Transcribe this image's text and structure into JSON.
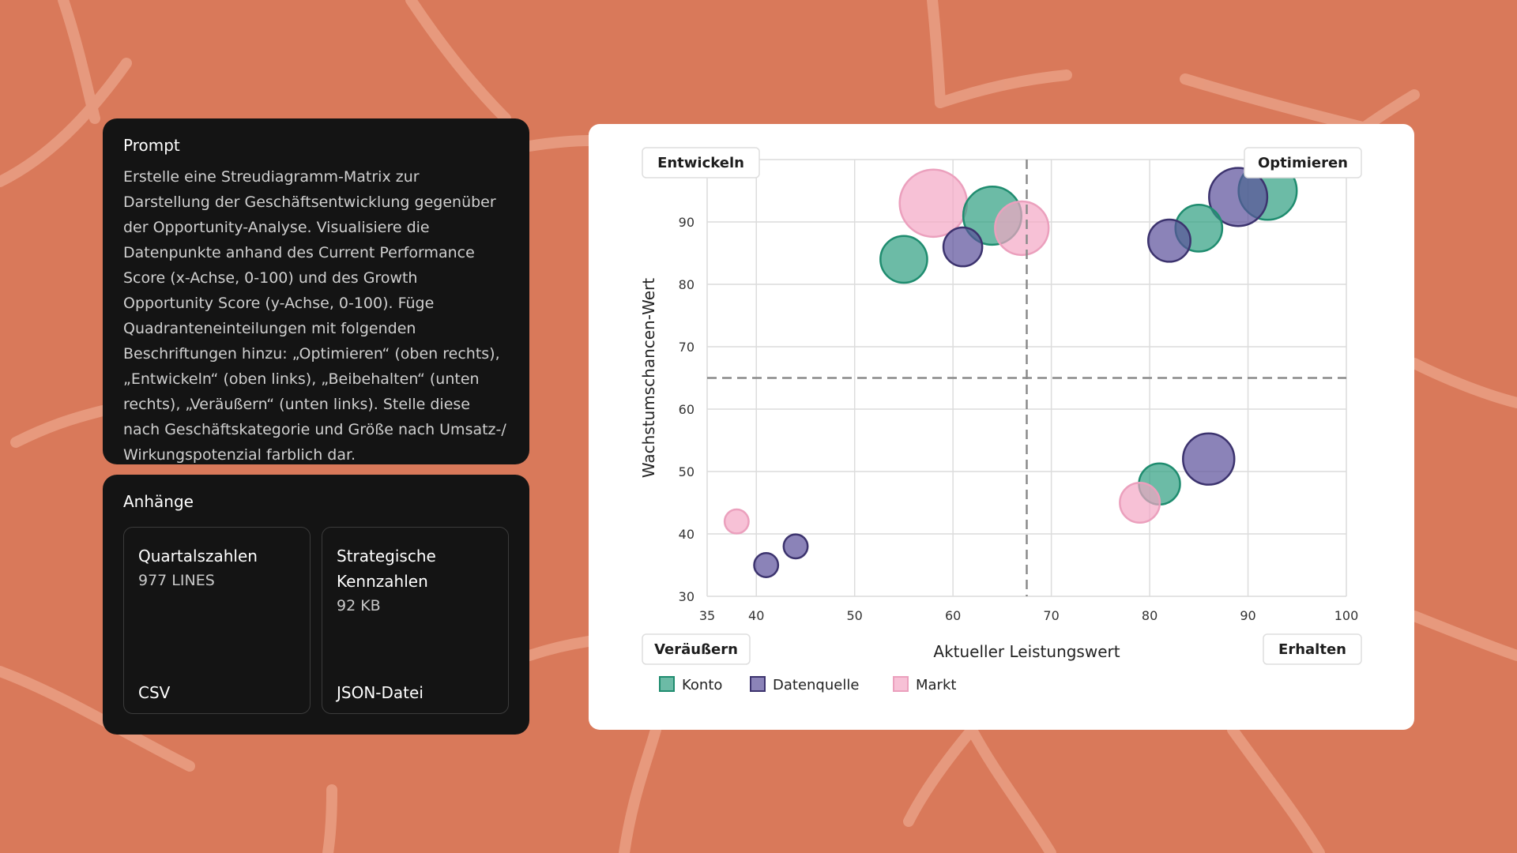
{
  "prompt": {
    "title": "Prompt",
    "text": "Erstelle eine Streudiagramm-Matrix zur Darstellung der Geschäftsentwicklung gegenüber der Opportunity-Analyse. Visualisiere die Datenpunkte anhand des Current Performance Score (x-Achse, 0-100) und des Growth Opportunity Score (y-Achse, 0-100). Füge Quadranteneinteilungen mit folgenden Beschriftungen hinzu: „Optimieren“ (oben rechts), „Entwickeln“ (oben links), „Beibehalten“ (unten rechts), „Veräußern“ (unten links). Stelle diese nach Geschäftskategorie und Größe nach Umsatz-/ Wirkungspotenzial farblich dar."
  },
  "attachments": {
    "title": "Anhänge",
    "items": [
      {
        "name": "Quartalszahlen",
        "meta": "977 LINES",
        "type": "CSV"
      },
      {
        "name": "Strategische Kennzahlen",
        "meta": "92 KB",
        "type": "JSON-Datei"
      }
    ]
  },
  "colors": {
    "background": "#d9795a",
    "Konto": "#2e9e80",
    "Datenquelle": "#5a4f9a",
    "Markt": "#f4a6c4"
  },
  "chart_data": {
    "type": "scatter",
    "title": "",
    "xlabel": "Aktueller Leistungswert",
    "ylabel": "Wachstumschancen-Wert",
    "xlim": [
      35,
      100
    ],
    "ylim": [
      30,
      100
    ],
    "xticks": [
      35,
      40,
      50,
      60,
      70,
      80,
      90,
      100
    ],
    "yticks": [
      30,
      40,
      50,
      60,
      70,
      80,
      90
    ],
    "grid": true,
    "legend": "bottom-left",
    "dividers": {
      "x": 67.5,
      "y": 65
    },
    "quadrants": {
      "top_left": "Entwickeln",
      "top_right": "Optimieren",
      "bottom_left": "Veräußern",
      "bottom_right": "Erhalten"
    },
    "series": [
      {
        "name": "Konto",
        "points": [
          {
            "x": 55,
            "y": 84,
            "size": 3
          },
          {
            "x": 64,
            "y": 91,
            "size": 4
          },
          {
            "x": 81,
            "y": 48,
            "size": 2.5
          },
          {
            "x": 85,
            "y": 89,
            "size": 3
          },
          {
            "x": 92,
            "y": 95,
            "size": 4
          }
        ]
      },
      {
        "name": "Datenquelle",
        "points": [
          {
            "x": 41,
            "y": 35,
            "size": 1
          },
          {
            "x": 44,
            "y": 38,
            "size": 1
          },
          {
            "x": 61,
            "y": 86,
            "size": 2.3
          },
          {
            "x": 82,
            "y": 87,
            "size": 2.6
          },
          {
            "x": 86,
            "y": 52,
            "size": 3.4
          },
          {
            "x": 89,
            "y": 94,
            "size": 4
          }
        ]
      },
      {
        "name": "Markt",
        "points": [
          {
            "x": 38,
            "y": 42,
            "size": 1
          },
          {
            "x": 58,
            "y": 93,
            "size": 4.8
          },
          {
            "x": 67,
            "y": 89,
            "size": 3.6
          },
          {
            "x": 79,
            "y": 45,
            "size": 2.4
          }
        ]
      }
    ]
  }
}
